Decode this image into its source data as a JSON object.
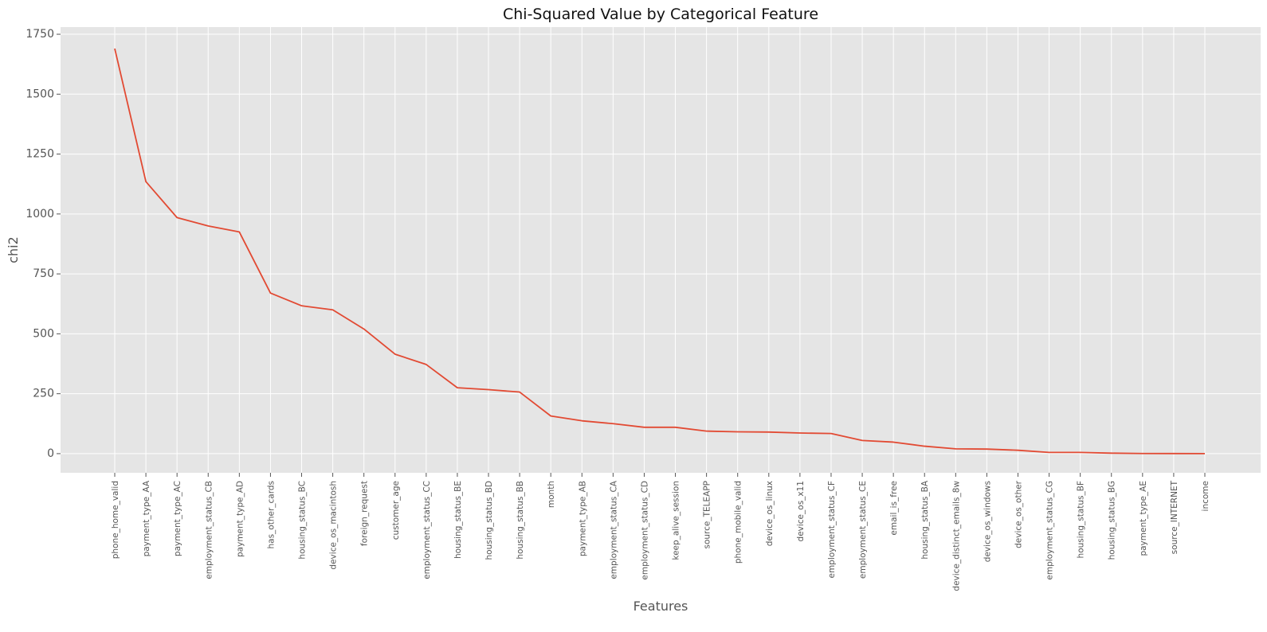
{
  "chart_data": {
    "type": "line",
    "title": "Chi-Squared Value by Categorical Feature",
    "xlabel": "Features",
    "ylabel": "chi2",
    "ylim": [
      -80,
      1780
    ],
    "yticks": [
      0,
      250,
      500,
      750,
      1000,
      1250,
      1500,
      1750
    ],
    "grid": true,
    "line_color": "#E24A33",
    "background_color": "#E5E5E5",
    "grid_color": "#FFFFFF",
    "categories": [
      "phone_home_valid",
      "payment_type_AA",
      "payment_type_AC",
      "employment_status_CB",
      "payment_type_AD",
      "has_other_cards",
      "housing_status_BC",
      "device_os_macintosh",
      "foreign_request",
      "customer_age",
      "employment_status_CC",
      "housing_status_BE",
      "housing_status_BD",
      "housing_status_BB",
      "month",
      "payment_type_AB",
      "employment_status_CA",
      "employment_status_CD",
      "keep_alive_session",
      "source_TELEAPP",
      "phone_mobile_valid",
      "device_os_linux",
      "device_os_x11",
      "employment_status_CF",
      "employment_status_CE",
      "email_is_free",
      "housing_status_BA",
      "device_distinct_emails_8w",
      "device_os_windows",
      "device_os_other",
      "employment_status_CG",
      "housing_status_BF",
      "housing_status_BG",
      "payment_type_AE",
      "source_INTERNET",
      "income"
    ],
    "values": [
      1690,
      1135,
      985,
      950,
      925,
      670,
      617,
      600,
      520,
      415,
      372,
      275,
      267,
      257,
      157,
      137,
      125,
      110,
      110,
      94,
      91,
      90,
      86,
      84,
      55,
      48,
      31,
      20,
      19,
      14,
      5,
      5,
      2,
      0.5,
      0.3,
      0
    ]
  }
}
